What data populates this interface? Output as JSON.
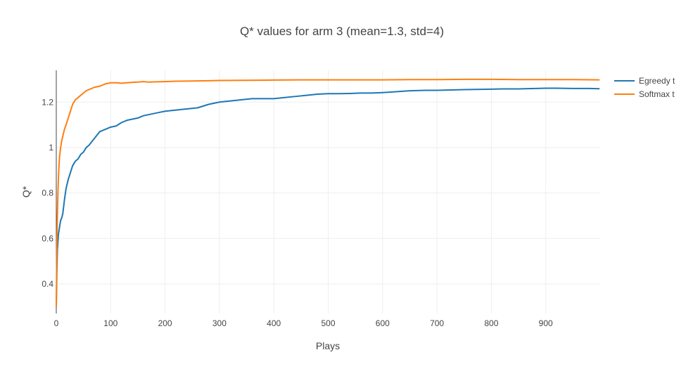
{
  "chart_data": {
    "type": "line",
    "title": "Q* values for arm 3 (mean=1.3, std=4)",
    "xlabel": "Plays",
    "ylabel": "Q*",
    "xlim": [
      0,
      1000
    ],
    "ylim": [
      0.27,
      1.34
    ],
    "x_ticks": [
      0,
      100,
      200,
      300,
      400,
      500,
      600,
      700,
      800,
      900
    ],
    "x_tick_labels": [
      "0",
      "100",
      "200",
      "300",
      "400",
      "500",
      "600",
      "700",
      "800",
      "900"
    ],
    "y_ticks": [
      0.4,
      0.6,
      0.8,
      1.0,
      1.2
    ],
    "y_tick_labels": [
      "0.4",
      "0.6",
      "0.8",
      "1",
      "1.2"
    ],
    "grid": true,
    "legend": "top-right",
    "series": [
      {
        "name": "Egreedy t",
        "color": "#1f77b4",
        "x": [
          0,
          1,
          2,
          4,
          6,
          8,
          10,
          12,
          15,
          18,
          22,
          26,
          30,
          35,
          40,
          45,
          50,
          55,
          60,
          70,
          80,
          90,
          100,
          110,
          120,
          130,
          140,
          150,
          160,
          170,
          180,
          190,
          200,
          220,
          240,
          260,
          280,
          300,
          320,
          340,
          360,
          380,
          400,
          420,
          440,
          460,
          480,
          500,
          520,
          540,
          560,
          580,
          600,
          620,
          650,
          680,
          700,
          720,
          750,
          780,
          800,
          820,
          850,
          880,
          900,
          920,
          950,
          980,
          999
        ],
        "y": [
          0.3,
          0.45,
          0.55,
          0.62,
          0.65,
          0.68,
          0.69,
          0.71,
          0.77,
          0.82,
          0.86,
          0.89,
          0.92,
          0.94,
          0.95,
          0.97,
          0.98,
          1.0,
          1.01,
          1.04,
          1.07,
          1.08,
          1.09,
          1.095,
          1.11,
          1.12,
          1.125,
          1.13,
          1.14,
          1.145,
          1.15,
          1.155,
          1.16,
          1.165,
          1.17,
          1.175,
          1.19,
          1.2,
          1.205,
          1.21,
          1.215,
          1.215,
          1.215,
          1.22,
          1.225,
          1.23,
          1.235,
          1.237,
          1.237,
          1.238,
          1.24,
          1.24,
          1.242,
          1.245,
          1.25,
          1.252,
          1.252,
          1.253,
          1.255,
          1.256,
          1.257,
          1.258,
          1.258,
          1.26,
          1.261,
          1.261,
          1.26,
          1.26,
          1.259
        ]
      },
      {
        "name": "Softmax t",
        "color": "#ff7f0e",
        "x": [
          0,
          1,
          2,
          3,
          4,
          5,
          6,
          8,
          10,
          12,
          15,
          18,
          22,
          26,
          30,
          35,
          40,
          45,
          50,
          55,
          60,
          65,
          70,
          80,
          90,
          100,
          110,
          120,
          130,
          140,
          150,
          160,
          170,
          180,
          200,
          220,
          250,
          280,
          300,
          350,
          400,
          450,
          500,
          550,
          600,
          650,
          700,
          750,
          800,
          850,
          900,
          950,
          999
        ],
        "y": [
          0.3,
          0.55,
          0.7,
          0.8,
          0.87,
          0.92,
          0.96,
          1.0,
          1.03,
          1.05,
          1.08,
          1.1,
          1.13,
          1.16,
          1.19,
          1.21,
          1.22,
          1.23,
          1.24,
          1.25,
          1.255,
          1.26,
          1.265,
          1.27,
          1.28,
          1.285,
          1.285,
          1.283,
          1.285,
          1.287,
          1.288,
          1.29,
          1.288,
          1.289,
          1.29,
          1.292,
          1.293,
          1.294,
          1.295,
          1.296,
          1.297,
          1.298,
          1.298,
          1.298,
          1.298,
          1.299,
          1.299,
          1.3,
          1.3,
          1.299,
          1.299,
          1.299,
          1.298
        ]
      }
    ]
  }
}
